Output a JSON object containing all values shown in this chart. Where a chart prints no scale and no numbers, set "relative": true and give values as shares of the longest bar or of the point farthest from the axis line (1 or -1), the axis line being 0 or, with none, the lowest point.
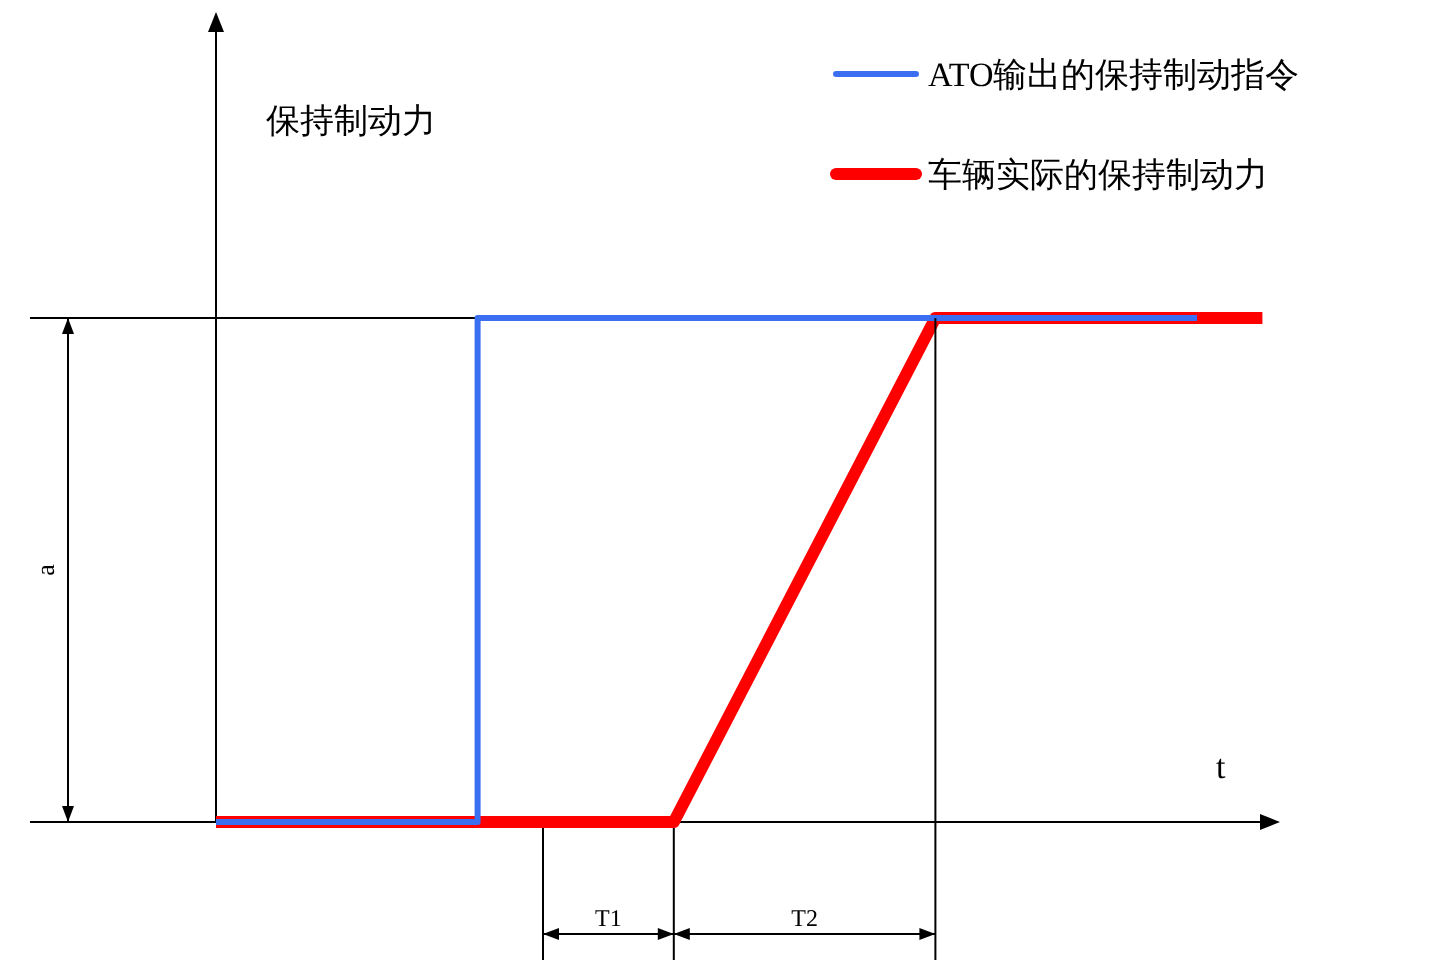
{
  "chart_data": {
    "type": "line",
    "xlabel": "t",
    "relative": true,
    "legend": "top right",
    "categories": [
      null,
      null,
      null,
      null,
      null,
      null,
      null,
      null,
      null,
      null,
      null,
      null,
      null,
      null,
      null,
      null,
      null
    ],
    "series": [
      {
        "name": "ATO输出的保持制动指令",
        "type": "step",
        "color": "#3b6ff2",
        "values": [
          0,
          0,
          0,
          0,
          0,
          1,
          1,
          1,
          1,
          1,
          1,
          1,
          1,
          1,
          1,
          1,
          null
        ]
      },
      {
        "name": "车辆实际的保持制动力",
        "type": "line",
        "color": "#ff0000",
        "values": [
          0,
          0,
          0,
          0,
          0,
          0,
          0,
          0,
          0.25,
          0.5,
          0.75,
          1,
          1,
          1,
          1,
          1,
          1
        ]
      }
    ],
    "ref_lines": [
      {
        "axis": "y",
        "value": 1
      }
    ],
    "annotations": [
      "a",
      "T1",
      "T2",
      "保持制动力"
    ]
  }
}
